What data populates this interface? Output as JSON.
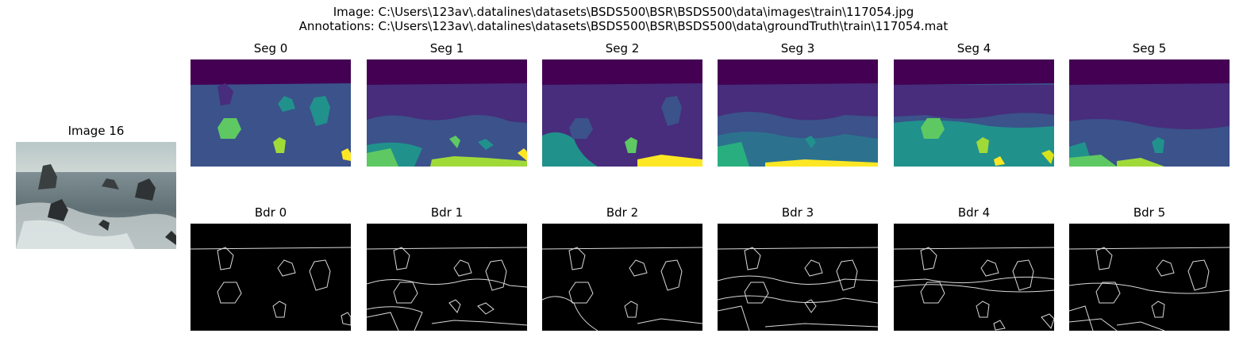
{
  "figure": {
    "image_path_line": "Image: C:\\Users\\123av\\.datalines\\datasets\\BSDS500\\BSR\\BSDS500\\data\\images\\train\\117054.jpg",
    "annotation_path_line": "Annotations: C:\\Users\\123av\\.datalines\\datasets\\BSDS500\\BSR\\BSDS500\\data\\groundTruth\\train\\117054.mat"
  },
  "photo": {
    "title": "Image 16"
  },
  "segments": [
    {
      "title": "Seg 0"
    },
    {
      "title": "Seg 1"
    },
    {
      "title": "Seg 2"
    },
    {
      "title": "Seg 3"
    },
    {
      "title": "Seg 4"
    },
    {
      "title": "Seg 5"
    }
  ],
  "boundaries": [
    {
      "title": "Bdr 0"
    },
    {
      "title": "Bdr 1"
    },
    {
      "title": "Bdr 2"
    },
    {
      "title": "Bdr 3"
    },
    {
      "title": "Bdr 4"
    },
    {
      "title": "Bdr 5"
    }
  ],
  "colors": {
    "viridis_dark": "#440154",
    "viridis_purple": "#472d7b",
    "viridis_blue": "#3b528b",
    "viridis_teal": "#21918c",
    "viridis_green": "#5ec962",
    "viridis_yellow": "#fde725",
    "boundary_bg": "#000000",
    "boundary_line": "#d9d9d9"
  }
}
